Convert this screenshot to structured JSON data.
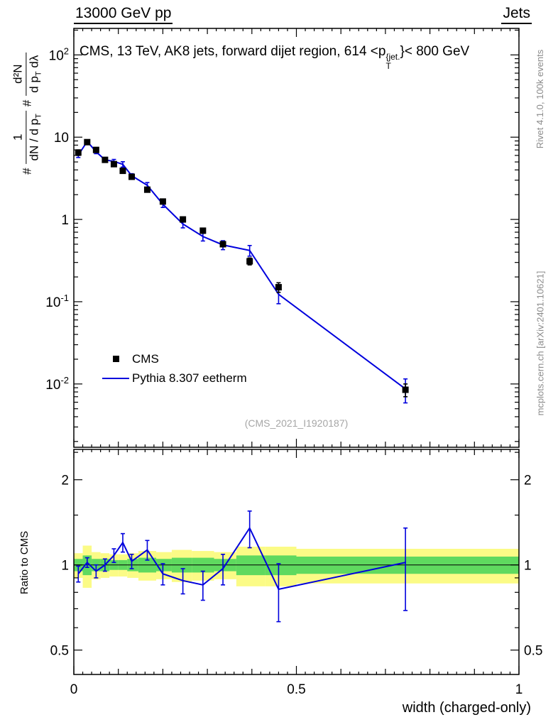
{
  "header": {
    "left": "13000 GeV pp",
    "right": "Jets"
  },
  "title": {
    "pre": "CMS, 13 TeV, AK8 jets, forward dijet region, 614 <p",
    "sup": "{jet.",
    "sub": "T",
    "post": "}< 800 GeV"
  },
  "ylabel_main": {
    "hash1": "#",
    "f1_num": "1",
    "f1_den_a": "dN / d p",
    "f1_den_sub": "T",
    "hash2": "#",
    "f2_num": "d²N",
    "f2_den_a": "d p",
    "f2_den_sub": "T",
    "f2_den_b": " dλ"
  },
  "watermark": "(CMS_2021_I1920187)",
  "side_notes": {
    "top_right": "Rivet 4.1.0,  100k events",
    "bottom_right": "mcplots.cern.ch [arXiv:2401.10621]"
  },
  "legend": {
    "items": [
      {
        "label": "CMS",
        "marker": "square",
        "color": "#000000"
      },
      {
        "label": "Pythia 8.307 eetherm",
        "marker": "line",
        "color": "#0000dd"
      }
    ]
  },
  "xlabel": "width (charged-only)",
  "ratio_ylabel": "Ratio to CMS",
  "colors": {
    "mc_line": "#0000dd",
    "data_marker": "#000000",
    "band_outer": "#fbfb86",
    "band_inner": "#5fd95f",
    "frame": "#000000",
    "note_gray": "#8c8c8c",
    "watermark_gray": "#a6a6a6"
  },
  "chart_data": [
    {
      "name": "main",
      "type": "line",
      "yscale": "log",
      "xlim": [
        0,
        1
      ],
      "ylim": [
        0.0017,
        210
      ],
      "x": [
        0.01,
        0.03,
        0.05,
        0.07,
        0.09,
        0.11,
        0.13,
        0.165,
        0.2,
        0.245,
        0.29,
        0.335,
        0.395,
        0.46,
        0.745
      ],
      "series": [
        {
          "name": "CMS",
          "style": "squares",
          "y": [
            6.5,
            8.7,
            7.0,
            5.3,
            4.7,
            3.9,
            3.3,
            2.3,
            1.65,
            1.0,
            0.73,
            0.5,
            0.31,
            0.15,
            0.0085
          ],
          "yerr": [
            0.5,
            0.5,
            0.45,
            0.35,
            0.3,
            0.25,
            0.2,
            0.15,
            0.1,
            0.07,
            0.05,
            0.035,
            0.03,
            0.02,
            0.0015
          ]
        },
        {
          "name": "Pythia 8.307 eetherm",
          "style": "line",
          "y": [
            6.05,
            8.87,
            6.65,
            5.3,
            5.08,
            4.68,
            3.4,
            2.6,
            1.53,
            0.88,
            0.62,
            0.49,
            0.42,
            0.123,
            0.0087
          ]
        }
      ],
      "y_ticks": [
        {
          "v": 100,
          "base": "10",
          "exp": "2"
        },
        {
          "v": 10,
          "base": "10"
        },
        {
          "v": 1,
          "base": "1"
        },
        {
          "v": 0.1,
          "base": "10",
          "exp": "-1"
        },
        {
          "v": 0.01,
          "base": "10",
          "exp": "-2"
        }
      ],
      "x_ticks": [
        {
          "v": 0,
          "label": "0"
        },
        {
          "v": 0.5,
          "label": "0.5"
        },
        {
          "v": 1,
          "label": "1"
        }
      ]
    },
    {
      "name": "ratio",
      "type": "line",
      "yscale": "log",
      "ylim": [
        0.41,
        2.56
      ],
      "ratio": [
        0.93,
        1.02,
        0.95,
        1.0,
        1.08,
        1.2,
        1.03,
        1.13,
        0.93,
        0.88,
        0.85,
        0.97,
        1.35,
        0.82,
        1.02
      ],
      "ratio_err": [
        0.06,
        0.04,
        0.05,
        0.05,
        0.06,
        0.09,
        0.06,
        0.09,
        0.08,
        0.09,
        0.1,
        0.12,
        0.2,
        0.19,
        0.33
      ],
      "bands": {
        "edges": [
          0,
          0.02,
          0.04,
          0.06,
          0.08,
          0.1,
          0.12,
          0.145,
          0.185,
          0.22,
          0.265,
          0.315,
          0.365,
          0.43,
          0.5,
          1.0
        ],
        "outer_halfwidth": [
          0.1,
          0.17,
          0.11,
          0.1,
          0.09,
          0.09,
          0.1,
          0.12,
          0.11,
          0.13,
          0.12,
          0.11,
          0.16,
          0.16,
          0.14
        ],
        "inner_halfwidth": [
          0.05,
          0.08,
          0.05,
          0.05,
          0.04,
          0.04,
          0.05,
          0.06,
          0.05,
          0.06,
          0.06,
          0.05,
          0.08,
          0.08,
          0.07
        ]
      },
      "y_ticks": [
        {
          "v": 2,
          "base": "2"
        },
        {
          "v": 1,
          "base": "1"
        },
        {
          "v": 0.5,
          "base": "0.5"
        }
      ]
    }
  ]
}
